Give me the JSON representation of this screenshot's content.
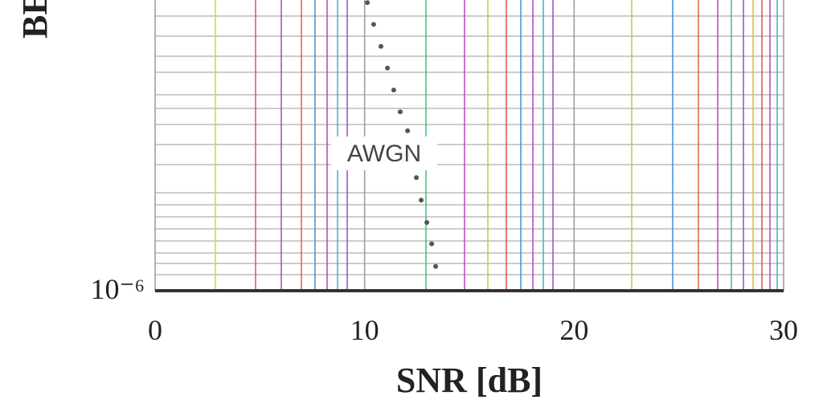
{
  "chart_data": {
    "type": "scatter",
    "x_label": "SNR [dB]",
    "y_label": "BER",
    "annotation": "AWGN",
    "log_y": true,
    "grid": true,
    "xlim": [
      0,
      30
    ],
    "xticks": [
      0,
      10,
      20,
      30
    ],
    "ylim": [
      1e-06,
      0.0001
    ],
    "yticks": [
      {
        "value": 1e-06,
        "label": "10⁻⁶"
      }
    ],
    "series": [
      {
        "name": "AWGN",
        "color": "#555555",
        "x": [
          10.13,
          10.43,
          10.78,
          11.09,
          11.39,
          11.7,
          12.05,
          12.47,
          12.7,
          12.97,
          13.2,
          13.39
        ],
        "values": [
          9.6e-05,
          6.8e-05,
          4.8e-05,
          3.4e-05,
          2.4e-05,
          1.7e-05,
          1.26e-05,
          6e-06,
          4.2e-06,
          2.95e-06,
          2.1e-06,
          1.47e-06
        ]
      }
    ]
  }
}
